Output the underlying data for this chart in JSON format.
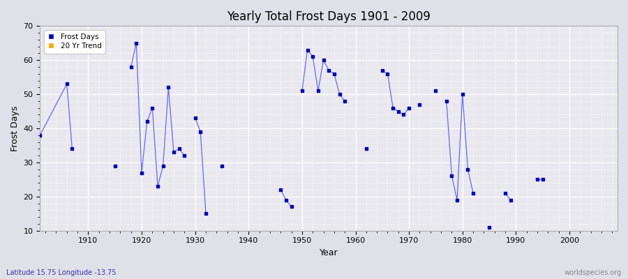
{
  "title": "Yearly Total Frost Days 1901 - 2009",
  "xlabel": "Year",
  "ylabel": "Frost Days",
  "subtitle": "Latitude 15.75 Longitude -13.75",
  "watermark": "worldspecies.org",
  "legend_labels": [
    "Frost Days",
    "20 Yr Trend"
  ],
  "legend_colors": [
    "#0000bb",
    "#ffa500"
  ],
  "line_color": "#6666ff",
  "marker_color": "#0000bb",
  "plot_bg": "#e8e8ee",
  "fig_bg": "#e0e0e8",
  "ylim": [
    10,
    70
  ],
  "xlim": [
    1901,
    2009
  ],
  "yticks": [
    10,
    20,
    30,
    40,
    50,
    60,
    70
  ],
  "xticks": [
    1910,
    1920,
    1930,
    1940,
    1950,
    1960,
    1970,
    1980,
    1990,
    2000
  ],
  "segments": [
    {
      "years": [
        1901,
        1906,
        1907
      ],
      "values": [
        38,
        53,
        34
      ]
    },
    {
      "years": [
        1915
      ],
      "values": [
        29
      ]
    },
    {
      "years": [
        1918,
        1919,
        1920,
        1921,
        1922,
        1923,
        1924,
        1925,
        1926,
        1927,
        1928
      ],
      "values": [
        58,
        65,
        27,
        42,
        46,
        23,
        29,
        52,
        33,
        34,
        32
      ]
    },
    {
      "years": [
        1930,
        1931,
        1932
      ],
      "values": [
        43,
        39,
        15
      ]
    },
    {
      "years": [
        1935
      ],
      "values": [
        29
      ]
    },
    {
      "years": [
        1946,
        1947,
        1948
      ],
      "values": [
        22,
        19,
        17
      ]
    },
    {
      "years": [
        1950,
        1951,
        1952,
        1953,
        1954,
        1955,
        1956,
        1957,
        1958
      ],
      "values": [
        51,
        63,
        61,
        51,
        60,
        57,
        56,
        50,
        48
      ]
    },
    {
      "years": [
        1962
      ],
      "values": [
        34
      ]
    },
    {
      "years": [
        1965,
        1966,
        1967,
        1968,
        1969,
        1970
      ],
      "values": [
        57,
        56,
        46,
        45,
        44,
        46
      ]
    },
    {
      "years": [
        1972
      ],
      "values": [
        47
      ]
    },
    {
      "years": [
        1975
      ],
      "values": [
        51
      ]
    },
    {
      "years": [
        1977,
        1978,
        1979,
        1980,
        1981,
        1982
      ],
      "values": [
        48,
        26,
        19,
        50,
        28,
        21
      ]
    },
    {
      "years": [
        1985
      ],
      "values": [
        11
      ]
    },
    {
      "years": [
        1988,
        1989
      ],
      "values": [
        21,
        19
      ]
    },
    {
      "years": [
        1994,
        1995
      ],
      "values": [
        25,
        25
      ]
    }
  ]
}
